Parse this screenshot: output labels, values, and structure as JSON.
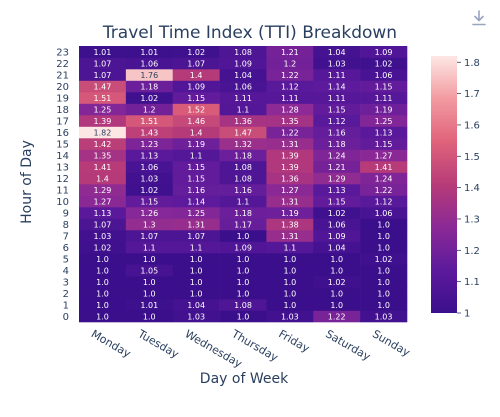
{
  "toolbar": {
    "download_icon": "download-icon"
  },
  "chart_data": {
    "type": "heatmap",
    "title": "Travel Time Index (TTI) Breakdown",
    "xlabel": "Day of Week",
    "ylabel": "Hour of Day",
    "x": [
      "Monday",
      "Tuesday",
      "Wednesday",
      "Thursday",
      "Friday",
      "Saturday",
      "Sunday"
    ],
    "y": [
      "0",
      "1",
      "2",
      "3",
      "4",
      "5",
      "6",
      "7",
      "8",
      "9",
      "10",
      "11",
      "12",
      "13",
      "14",
      "15",
      "16",
      "17",
      "18",
      "19",
      "20",
      "21",
      "22",
      "23"
    ],
    "values": [
      [
        1.0,
        1.0,
        1.03,
        1.0,
        1.03,
        1.22,
        1.03
      ],
      [
        1.0,
        1.01,
        1.04,
        1.08,
        1.0,
        1.0,
        1.0
      ],
      [
        1.0,
        1.0,
        1.0,
        1.0,
        1.0,
        1.0,
        1.0
      ],
      [
        1.0,
        1.0,
        1.0,
        1.0,
        1.0,
        1.02,
        1.0
      ],
      [
        1.0,
        1.05,
        1.0,
        1.0,
        1.0,
        1.0,
        1.0
      ],
      [
        1.0,
        1.0,
        1.0,
        1.0,
        1.0,
        1.0,
        1.02
      ],
      [
        1.02,
        1.1,
        1.1,
        1.09,
        1.1,
        1.04,
        1.0
      ],
      [
        1.03,
        1.07,
        1.07,
        1.0,
        1.31,
        1.09,
        1.0
      ],
      [
        1.07,
        1.3,
        1.31,
        1.17,
        1.38,
        1.06,
        1.0
      ],
      [
        1.13,
        1.26,
        1.25,
        1.18,
        1.19,
        1.02,
        1.06
      ],
      [
        1.27,
        1.15,
        1.14,
        1.1,
        1.31,
        1.15,
        1.12
      ],
      [
        1.29,
        1.02,
        1.16,
        1.16,
        1.27,
        1.13,
        1.22
      ],
      [
        1.4,
        1.03,
        1.15,
        1.08,
        1.36,
        1.29,
        1.24
      ],
      [
        1.41,
        1.06,
        1.15,
        1.08,
        1.39,
        1.21,
        1.41
      ],
      [
        1.35,
        1.13,
        1.1,
        1.18,
        1.39,
        1.24,
        1.27
      ],
      [
        1.42,
        1.23,
        1.19,
        1.32,
        1.31,
        1.18,
        1.15
      ],
      [
        1.82,
        1.43,
        1.4,
        1.47,
        1.22,
        1.16,
        1.13
      ],
      [
        1.39,
        1.51,
        1.46,
        1.36,
        1.35,
        1.12,
        1.25
      ],
      [
        1.25,
        1.2,
        1.52,
        1.1,
        1.28,
        1.15,
        1.19
      ],
      [
        1.51,
        1.02,
        1.15,
        1.11,
        1.11,
        1.11,
        1.11
      ],
      [
        1.47,
        1.18,
        1.09,
        1.06,
        1.12,
        1.14,
        1.15
      ],
      [
        1.07,
        1.76,
        1.4,
        1.04,
        1.22,
        1.11,
        1.06
      ],
      [
        1.07,
        1.06,
        1.07,
        1.09,
        1.2,
        1.03,
        1.02
      ],
      [
        1.01,
        1.01,
        1.02,
        1.08,
        1.21,
        1.04,
        1.09
      ]
    ],
    "value_labels": [
      [
        "1.0",
        "1.0",
        "1.03",
        "1.0",
        "1.03",
        "1.22",
        "1.03"
      ],
      [
        "1.0",
        "1.01",
        "1.04",
        "1.08",
        "1.0",
        "1.0",
        "1.0"
      ],
      [
        "1.0",
        "1.0",
        "1.0",
        "1.0",
        "1.0",
        "1.0",
        "1.0"
      ],
      [
        "1.0",
        "1.0",
        "1.0",
        "1.0",
        "1.0",
        "1.02",
        "1.0"
      ],
      [
        "1.0",
        "1.05",
        "1.0",
        "1.0",
        "1.0",
        "1.0",
        "1.0"
      ],
      [
        "1.0",
        "1.0",
        "1.0",
        "1.0",
        "1.0",
        "1.0",
        "1.02"
      ],
      [
        "1.02",
        "1.1",
        "1.1",
        "1.09",
        "1.1",
        "1.04",
        "1.0"
      ],
      [
        "1.03",
        "1.07",
        "1.07",
        "1.0",
        "1.31",
        "1.09",
        "1.0"
      ],
      [
        "1.07",
        "1.3",
        "1.31",
        "1.17",
        "1.38",
        "1.06",
        "1.0"
      ],
      [
        "1.13",
        "1.26",
        "1.25",
        "1.18",
        "1.19",
        "1.02",
        "1.06"
      ],
      [
        "1.27",
        "1.15",
        "1.14",
        "1.1",
        "1.31",
        "1.15",
        "1.12"
      ],
      [
        "1.29",
        "1.02",
        "1.16",
        "1.16",
        "1.27",
        "1.13",
        "1.22"
      ],
      [
        "1.4",
        "1.03",
        "1.15",
        "1.08",
        "1.36",
        "1.29",
        "1.24"
      ],
      [
        "1.41",
        "1.06",
        "1.15",
        "1.08",
        "1.39",
        "1.21",
        "1.41"
      ],
      [
        "1.35",
        "1.13",
        "1.1",
        "1.18",
        "1.39",
        "1.24",
        "1.27"
      ],
      [
        "1.42",
        "1.23",
        "1.19",
        "1.32",
        "1.31",
        "1.18",
        "1.15"
      ],
      [
        "1.82",
        "1.43",
        "1.4",
        "1.47",
        "1.22",
        "1.16",
        "1.13"
      ],
      [
        "1.39",
        "1.51",
        "1.46",
        "1.36",
        "1.35",
        "1.12",
        "1.25"
      ],
      [
        "1.25",
        "1.2",
        "1.52",
        "1.1",
        "1.28",
        "1.15",
        "1.19"
      ],
      [
        "1.51",
        "1.02",
        "1.15",
        "1.11",
        "1.11",
        "1.11",
        "1.11"
      ],
      [
        "1.47",
        "1.18",
        "1.09",
        "1.06",
        "1.12",
        "1.14",
        "1.15"
      ],
      [
        "1.07",
        "1.76",
        "1.4",
        "1.04",
        "1.22",
        "1.11",
        "1.06"
      ],
      [
        "1.07",
        "1.06",
        "1.07",
        "1.09",
        "1.2",
        "1.03",
        "1.02"
      ],
      [
        "1.01",
        "1.01",
        "1.02",
        "1.08",
        "1.21",
        "1.04",
        "1.09"
      ]
    ],
    "colorscale": {
      "min": 1.0,
      "max": 1.82,
      "stops": [
        "#3b0f8c",
        "#5c1a9c",
        "#8b2996",
        "#b73b78",
        "#e0637b",
        "#f29aa0",
        "#fde7e4"
      ],
      "ticks": [
        "1",
        "1.1",
        "1.2",
        "1.3",
        "1.4",
        "1.5",
        "1.6",
        "1.7",
        "1.8"
      ]
    },
    "legend": "right",
    "grid": false
  }
}
